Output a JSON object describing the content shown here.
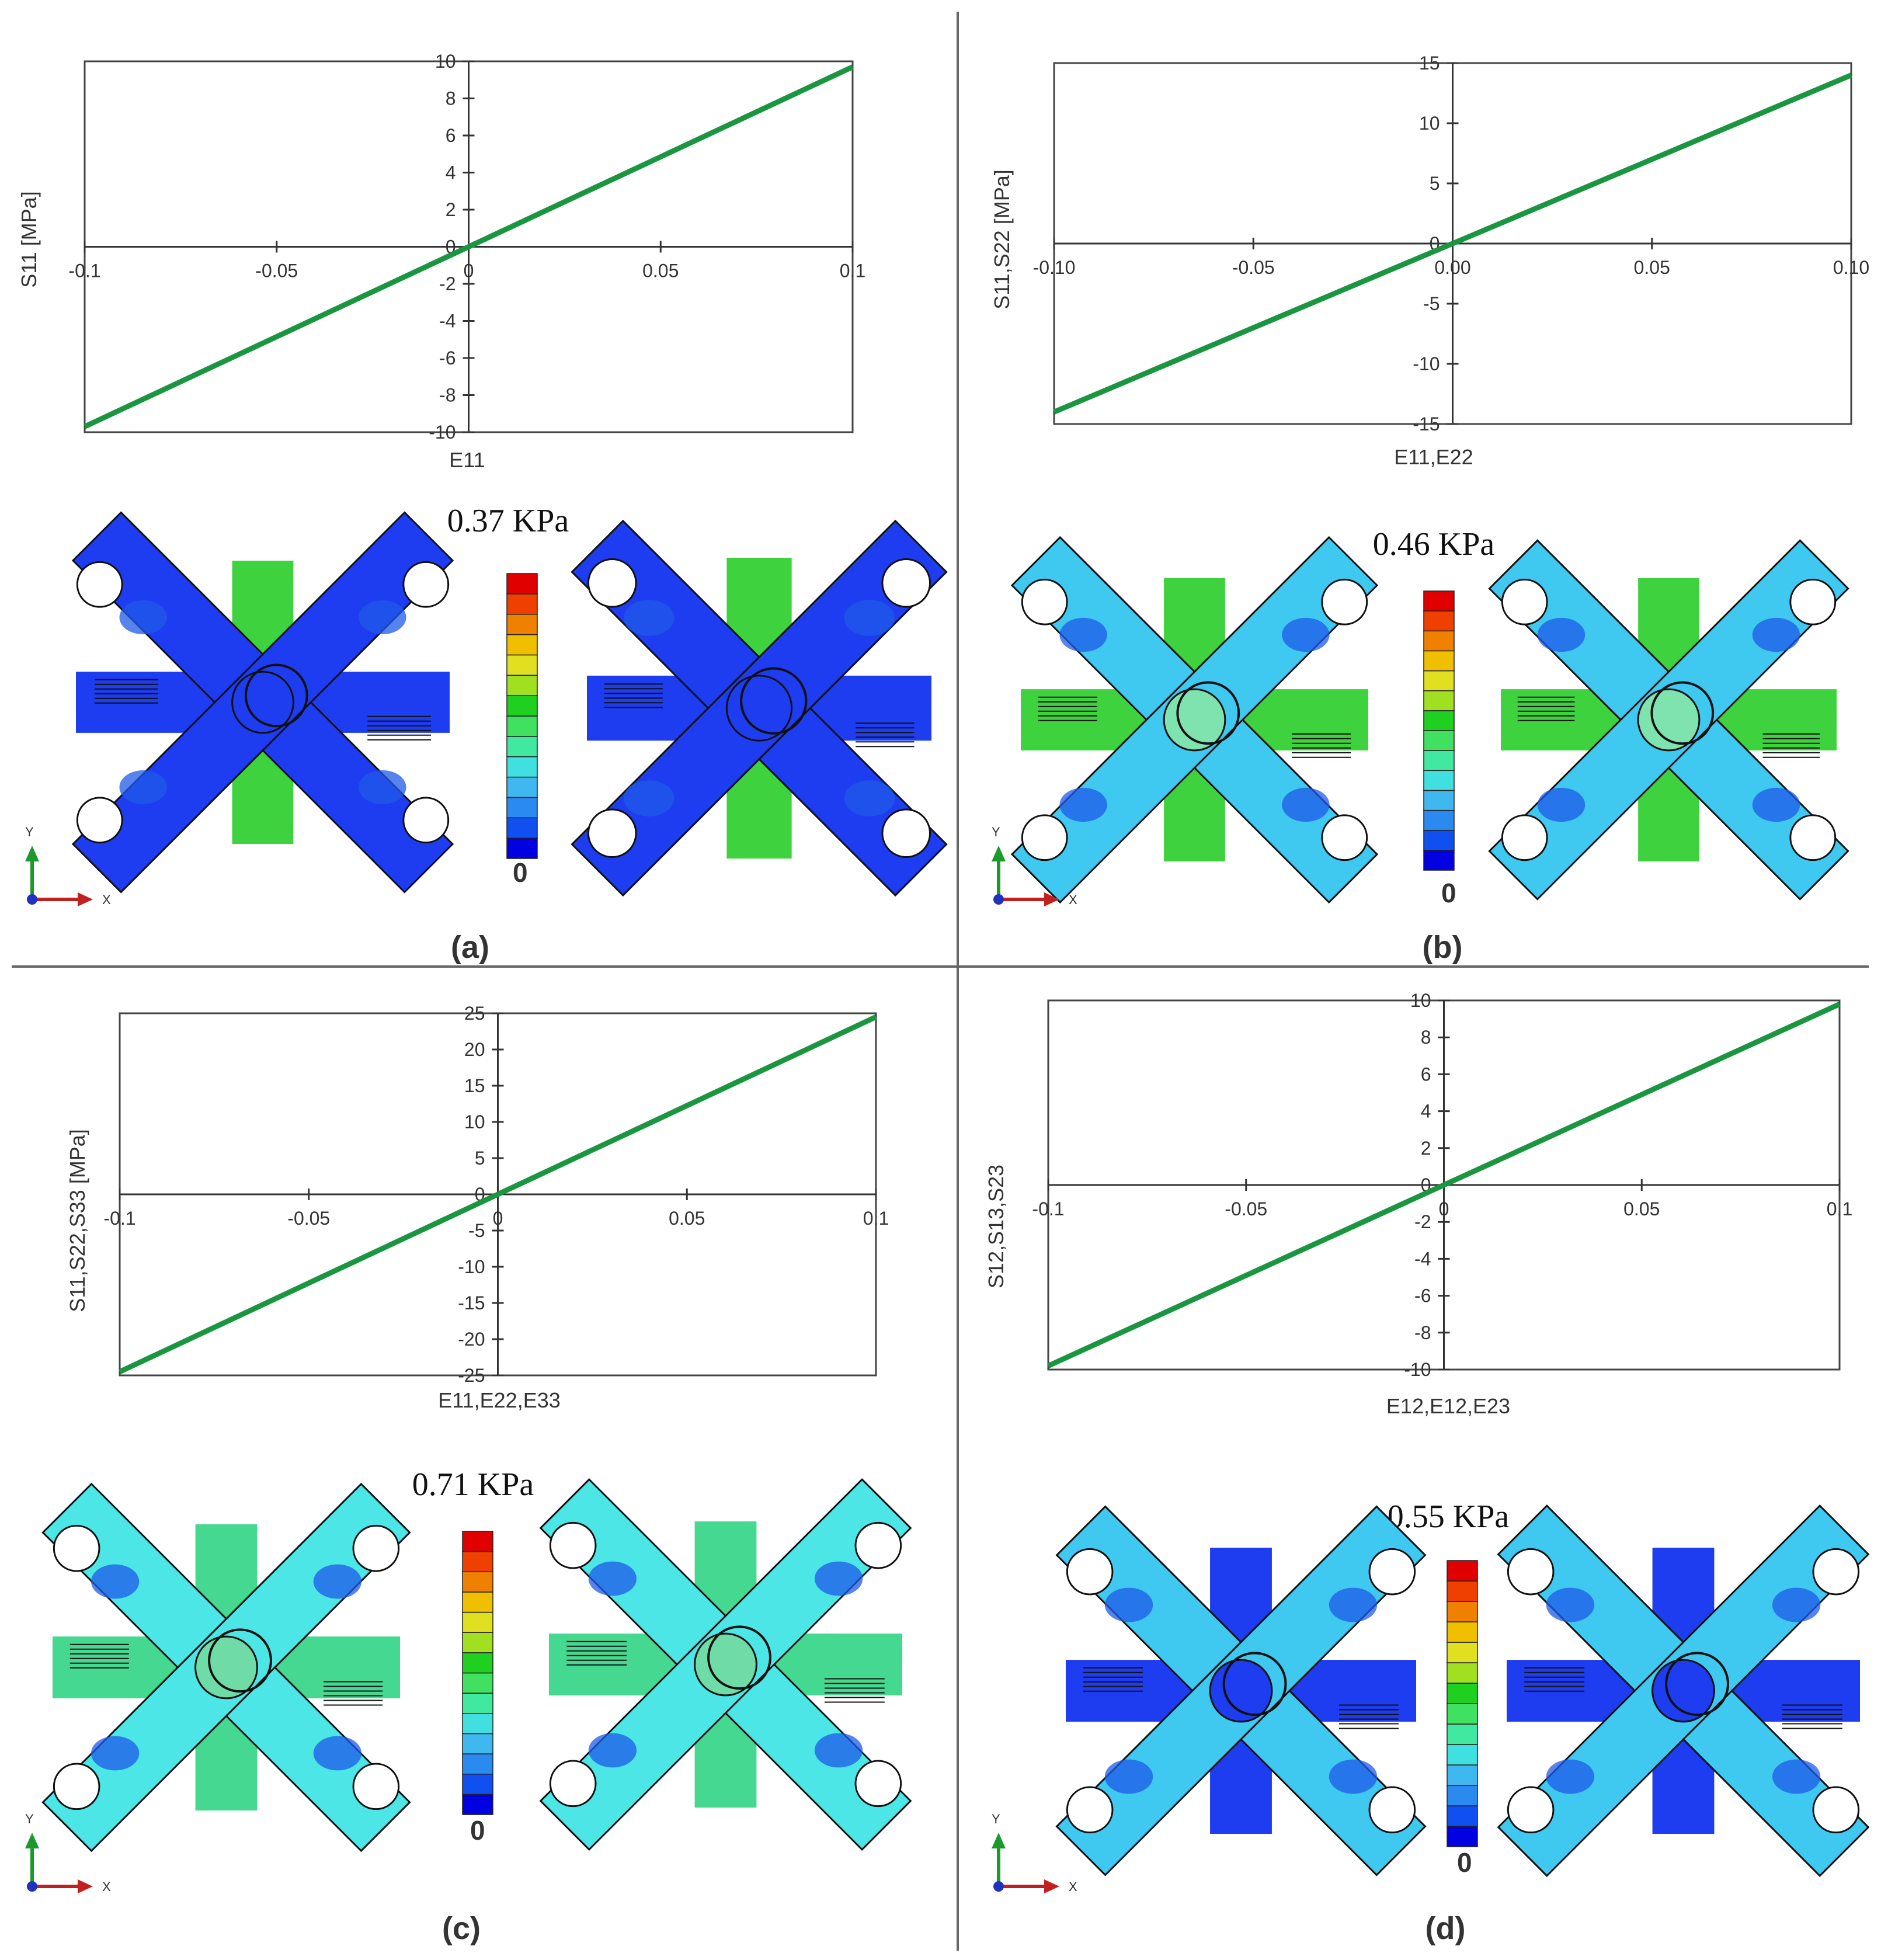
{
  "colors": {
    "line": "#1a9641",
    "axis": "#333333",
    "frame": "#444444",
    "legend": [
      "#0000e0",
      "#1050f0",
      "#2a8af0",
      "#3fb8f0",
      "#40e0e0",
      "#40e8a0",
      "#40e060",
      "#20d020",
      "#a0e020",
      "#e0e020",
      "#f0c000",
      "#f08000",
      "#f04000",
      "#e00000"
    ],
    "bars": {
      "blue": "#1e3cf0",
      "cyan": "#3fc8f0",
      "lightcyan": "#4de6e6",
      "green": "#3ed23e"
    }
  },
  "panels": [
    {
      "label": "(a)",
      "pressure": "0.37 KPa",
      "legend_min": "0",
      "axis_letters": {
        "y": "Y",
        "x": "X"
      },
      "chart_data": {
        "type": "line",
        "xlabel": "E11",
        "ylabel": "S11 [MPa]",
        "xlim": [
          -0.1,
          0.1
        ],
        "ylim": [
          -10,
          10
        ],
        "x_ticks": [
          "-0.1",
          "-0.05",
          "0",
          "0.05",
          "0.1"
        ],
        "x_tick_values": [
          -0.1,
          -0.05,
          0,
          0.05,
          0.1
        ],
        "y_ticks": [
          "-10",
          "-8",
          "-6",
          "-4",
          "-2",
          "0",
          "2",
          "4",
          "6",
          "8",
          "10"
        ],
        "y_tick_values": [
          -10,
          -8,
          -6,
          -4,
          -2,
          0,
          2,
          4,
          6,
          8,
          10
        ],
        "series": [
          {
            "name": "S11",
            "x": [
              -0.1,
              0.1
            ],
            "y": [
              -9.7,
              9.7
            ]
          }
        ]
      }
    },
    {
      "label": "(b)",
      "pressure": "0.46 KPa",
      "legend_min": "0",
      "axis_letters": {
        "y": "Y",
        "x": "X"
      },
      "chart_data": {
        "type": "line",
        "xlabel": "E11,E22",
        "ylabel": "S11,S22 [MPa]",
        "xlim": [
          -0.1,
          0.1
        ],
        "ylim": [
          -15,
          15
        ],
        "x_ticks": [
          "-0.10",
          "-0.05",
          "0.00",
          "0.05",
          "0.10"
        ],
        "x_tick_values": [
          -0.1,
          -0.05,
          0,
          0.05,
          0.1
        ],
        "y_ticks": [
          "-15",
          "-10",
          "-5",
          "0",
          "5",
          "10",
          "15"
        ],
        "y_tick_values": [
          -15,
          -10,
          -5,
          0,
          5,
          10,
          15
        ],
        "series": [
          {
            "name": "S11,S22",
            "x": [
              -0.1,
              0.1
            ],
            "y": [
              -14,
              14
            ]
          }
        ]
      }
    },
    {
      "label": "(c)",
      "pressure": "0.71 KPa",
      "legend_min": "0",
      "axis_letters": {
        "y": "Y",
        "x": "X"
      },
      "chart_data": {
        "type": "line",
        "xlabel": "E11,E22,E33",
        "ylabel": "S11,S22,S33 [MPa]",
        "xlim": [
          -0.1,
          0.1
        ],
        "ylim": [
          -25,
          25
        ],
        "x_ticks": [
          "-0.1",
          "-0.05",
          "0",
          "0.05",
          "0.1"
        ],
        "x_tick_values": [
          -0.1,
          -0.05,
          0,
          0.05,
          0.1
        ],
        "y_ticks": [
          "-25",
          "-20",
          "-15",
          "-10",
          "-5",
          "0",
          "5",
          "10",
          "15",
          "20",
          "25"
        ],
        "y_tick_values": [
          -25,
          -20,
          -15,
          -10,
          -5,
          0,
          5,
          10,
          15,
          20,
          25
        ],
        "series": [
          {
            "name": "S11,S22,S33",
            "x": [
              -0.1,
              0.1
            ],
            "y": [
              -24.5,
              24.5
            ]
          }
        ]
      }
    },
    {
      "label": "(d)",
      "pressure": "0.55 KPa",
      "legend_min": "0",
      "axis_letters": {
        "y": "Y",
        "x": "X"
      },
      "chart_data": {
        "type": "line",
        "xlabel": "E12,E12,E23",
        "ylabel": "S12,S13,S23",
        "xlim": [
          -0.1,
          0.1
        ],
        "ylim": [
          -10,
          10
        ],
        "x_ticks": [
          "-0.1",
          "-0.05",
          "0",
          "0.05",
          "0.1"
        ],
        "x_tick_values": [
          -0.1,
          -0.05,
          0,
          0.05,
          0.1
        ],
        "y_ticks": [
          "-10",
          "-8",
          "-6",
          "-4",
          "-2",
          "0",
          "2",
          "4",
          "6",
          "8",
          "10"
        ],
        "y_tick_values": [
          -10,
          -8,
          -6,
          -4,
          -2,
          0,
          2,
          4,
          6,
          8,
          10
        ],
        "series": [
          {
            "name": "S12,S13,S23",
            "x": [
              -0.1,
              0.1
            ],
            "y": [
              -9.8,
              9.8
            ]
          }
        ]
      }
    }
  ]
}
